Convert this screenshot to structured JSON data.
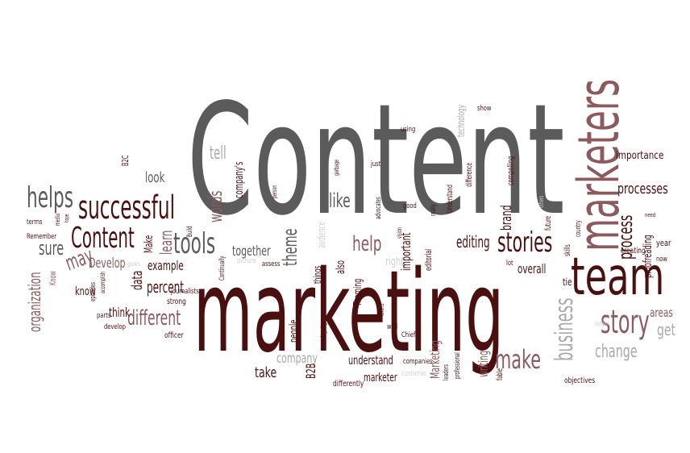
{
  "cloud": {
    "words": [
      {
        "id": "content-big",
        "text": "Content"
      },
      {
        "id": "marketing-big",
        "text": "marketing"
      },
      {
        "id": "marketers",
        "text": "marketers"
      },
      {
        "id": "team",
        "text": "team"
      },
      {
        "id": "stories",
        "text": "stories"
      },
      {
        "id": "story",
        "text": "story"
      },
      {
        "id": "successful",
        "text": "successful"
      },
      {
        "id": "content-small",
        "text": "Content"
      },
      {
        "id": "helps",
        "text": "helps"
      },
      {
        "id": "tools",
        "text": "tools"
      },
      {
        "id": "make",
        "text": "make"
      },
      {
        "id": "business",
        "text": "business"
      },
      {
        "id": "change",
        "text": "change"
      },
      {
        "id": "process",
        "text": "process"
      },
      {
        "id": "processes",
        "text": "processes"
      },
      {
        "id": "importance",
        "text": "importance"
      },
      {
        "id": "proofreading",
        "text": "proofreading"
      },
      {
        "id": "organization",
        "text": "organization"
      },
      {
        "id": "different",
        "text": "different"
      },
      {
        "id": "percent",
        "text": "percent"
      },
      {
        "id": "example",
        "text": "example"
      },
      {
        "id": "editing",
        "text": "editing"
      },
      {
        "id": "theme",
        "text": "theme"
      },
      {
        "id": "together",
        "text": "together"
      },
      {
        "id": "like",
        "text": "like"
      },
      {
        "id": "help",
        "text": "help"
      },
      {
        "id": "words",
        "text": "words"
      },
      {
        "id": "look",
        "text": "look"
      },
      {
        "id": "tell",
        "text": "tell"
      },
      {
        "id": "sure",
        "text": "sure"
      },
      {
        "id": "may",
        "text": "may"
      },
      {
        "id": "develop-cap",
        "text": "Develop"
      },
      {
        "id": "know",
        "text": "know"
      },
      {
        "id": "data",
        "text": "data"
      },
      {
        "id": "think",
        "text": "think"
      },
      {
        "id": "take",
        "text": "take"
      },
      {
        "id": "company",
        "text": "company"
      },
      {
        "id": "understand",
        "text": "understand"
      },
      {
        "id": "marketer",
        "text": "marketer"
      },
      {
        "id": "writing",
        "text": "writing"
      },
      {
        "id": "marketing-small",
        "text": "Marketing"
      },
      {
        "id": "important",
        "text": "important"
      },
      {
        "id": "brand",
        "text": "brand"
      },
      {
        "id": "areas",
        "text": "areas"
      },
      {
        "id": "get",
        "text": "get"
      },
      {
        "id": "b2b",
        "text": "B2B"
      },
      {
        "id": "people",
        "text": "people"
      },
      {
        "id": "companys",
        "text": "company's"
      },
      {
        "id": "learn",
        "text": "learn"
      },
      {
        "id": "make-small",
        "text": "Make"
      },
      {
        "id": "overall",
        "text": "overall"
      },
      {
        "id": "technology",
        "text": "technology"
      },
      {
        "id": "audience",
        "text": "audience"
      },
      {
        "id": "things",
        "text": "things"
      },
      {
        "id": "also",
        "text": "also"
      },
      {
        "id": "theming",
        "text": "Theming"
      },
      {
        "id": "compelling",
        "text": "compelling"
      },
      {
        "id": "difference",
        "text": "difference"
      },
      {
        "id": "understand-small",
        "text": "Understand"
      },
      {
        "id": "editorial",
        "text": "editorial"
      },
      {
        "id": "future",
        "text": "future"
      },
      {
        "id": "skills",
        "text": "skills"
      },
      {
        "id": "creating",
        "text": "creating"
      },
      {
        "id": "year",
        "text": "year"
      },
      {
        "id": "objectives",
        "text": "objectives"
      },
      {
        "id": "fable",
        "text": "fable"
      },
      {
        "id": "differently",
        "text": "differently"
      },
      {
        "id": "professional",
        "text": "professional"
      },
      {
        "id": "leaders",
        "text": "leaders"
      },
      {
        "id": "customer",
        "text": "customer"
      },
      {
        "id": "companies",
        "text": "companies"
      },
      {
        "id": "chief",
        "text": "Chief"
      },
      {
        "id": "well",
        "text": "well"
      },
      {
        "id": "officer",
        "text": "officer"
      },
      {
        "id": "develop",
        "text": "develop"
      },
      {
        "id": "parts",
        "text": "parts"
      },
      {
        "id": "strong",
        "text": "strong"
      },
      {
        "id": "journalists",
        "text": "journalists"
      },
      {
        "id": "episodes",
        "text": "episodes"
      },
      {
        "id": "terms",
        "text": "terms"
      },
      {
        "id": "remember",
        "text": "Remember"
      },
      {
        "id": "b2c",
        "text": "B2C"
      },
      {
        "id": "build",
        "text": "Build"
      },
      {
        "id": "continually",
        "text": "Continually"
      },
      {
        "id": "assess",
        "text": "assess"
      },
      {
        "id": "picture",
        "text": "picture"
      },
      {
        "id": "using",
        "text": "using"
      },
      {
        "id": "show",
        "text": "show"
      },
      {
        "id": "just",
        "text": "just"
      },
      {
        "id": "good",
        "text": "good"
      },
      {
        "id": "really",
        "text": "really"
      },
      {
        "id": "advocates",
        "text": "advocates"
      },
      {
        "id": "right",
        "text": "right"
      },
      {
        "id": "loyalty",
        "text": "loyalty"
      },
      {
        "id": "vision",
        "text": "vision"
      },
      {
        "id": "efforts",
        "text": "efforts"
      },
      {
        "id": "know-cap",
        "text": "Know"
      },
      {
        "id": "accomplish",
        "text": "accomplish"
      },
      {
        "id": "lot",
        "text": "lot"
      },
      {
        "id": "tie",
        "text": "tie"
      },
      {
        "id": "larger",
        "text": "larger"
      },
      {
        "id": "country",
        "text": "country"
      },
      {
        "id": "now",
        "text": "now"
      },
      {
        "id": "goals",
        "text": "goals"
      },
      {
        "id": "person",
        "text": "person"
      },
      {
        "id": "garbage",
        "text": "garbage"
      },
      {
        "id": "others",
        "text": "others"
      },
      {
        "id": "media",
        "text": "media"
      },
      {
        "id": "hope",
        "text": "hope"
      },
      {
        "id": "need",
        "text": "need"
      }
    ]
  }
}
